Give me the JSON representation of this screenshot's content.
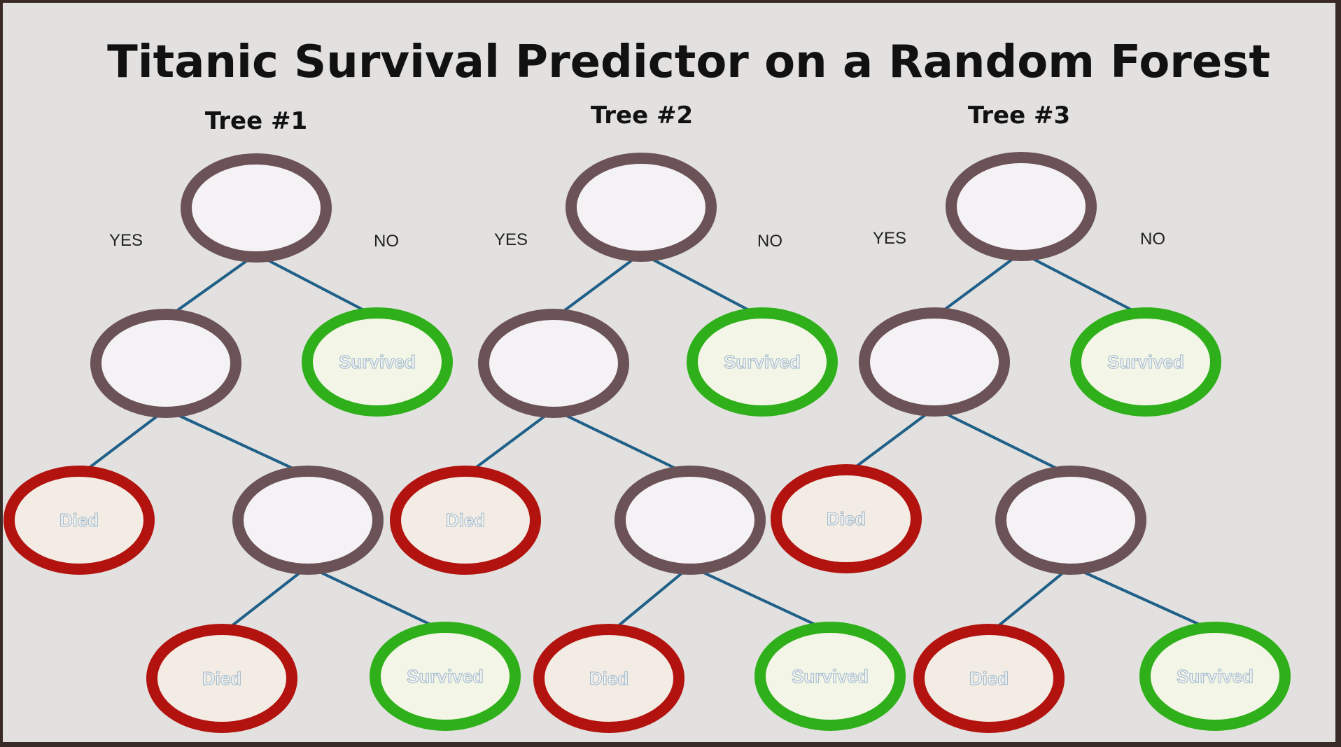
{
  "title": "Titanic Survival Predictor on a Random Forest",
  "branch_labels": {
    "yes": "YES",
    "no": "NO"
  },
  "colors": {
    "decision_fill": "#f4f2f5",
    "decision_border": "#6b5257",
    "died_fill": "#f3ece4",
    "died_border": "#b2130f",
    "survived_fill": "#f3f5e7",
    "survived_border": "#2fb01a",
    "edge": "#1f5f88"
  },
  "trees": [
    {
      "title": "Tree #1",
      "nodes": {
        "root": {
          "type": "decision",
          "label": ""
        },
        "r_yes": {
          "type": "decision",
          "label": ""
        },
        "r_no": {
          "type": "survived",
          "label": "Survived"
        },
        "rr_yes": {
          "type": "died",
          "label": "Died"
        },
        "rr_no": {
          "type": "decision",
          "label": ""
        },
        "rrr_yes": {
          "type": "died",
          "label": "Died"
        },
        "rrr_no": {
          "type": "survived",
          "label": "Survived"
        }
      }
    },
    {
      "title": "Tree #2",
      "nodes": {
        "root": {
          "type": "decision",
          "label": ""
        },
        "r_yes": {
          "type": "decision",
          "label": ""
        },
        "r_no": {
          "type": "survived",
          "label": "Survived"
        },
        "rr_yes": {
          "type": "died",
          "label": "Died"
        },
        "rr_no": {
          "type": "decision",
          "label": ""
        },
        "rrr_yes": {
          "type": "died",
          "label": "Died"
        },
        "rrr_no": {
          "type": "survived",
          "label": "Survived"
        }
      }
    },
    {
      "title": "Tree #3",
      "nodes": {
        "root": {
          "type": "decision",
          "label": ""
        },
        "r_yes": {
          "type": "decision",
          "label": ""
        },
        "r_no": {
          "type": "survived",
          "label": "Survived"
        },
        "rr_yes": {
          "type": "died",
          "label": "Died"
        },
        "rr_no": {
          "type": "decision",
          "label": ""
        },
        "rrr_yes": {
          "type": "died",
          "label": "Died"
        },
        "rrr_no": {
          "type": "survived",
          "label": "Survived"
        }
      }
    }
  ]
}
